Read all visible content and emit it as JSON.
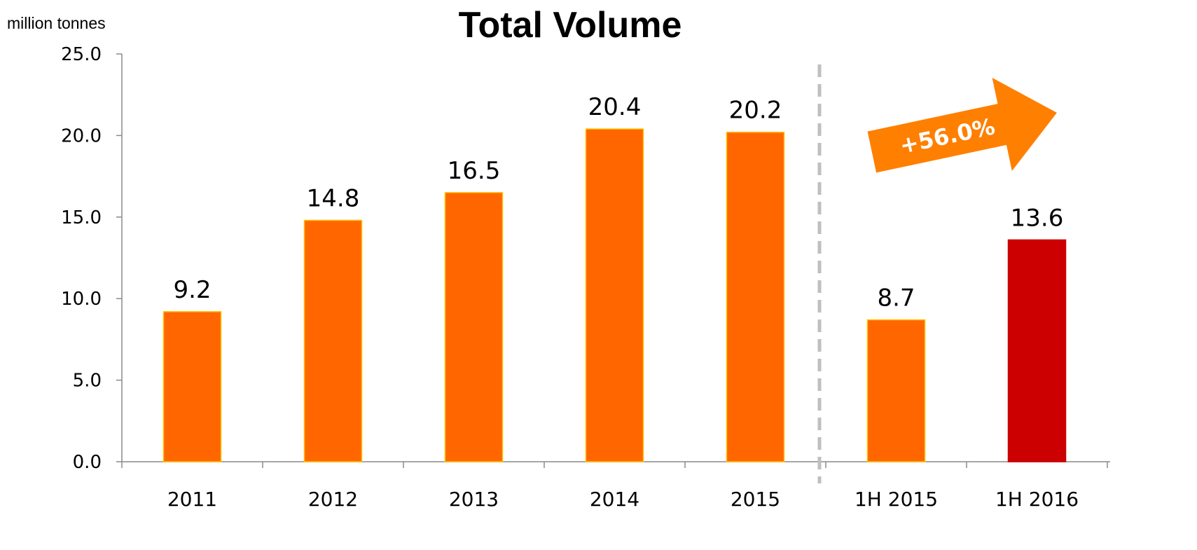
{
  "chart_data": {
    "type": "bar",
    "title": "Total Volume",
    "ylabel": "million tonnes",
    "xlabel": "",
    "ylim": [
      0,
      25
    ],
    "yticks": [
      "0.0",
      "5.0",
      "10.0",
      "15.0",
      "20.0",
      "25.0"
    ],
    "grid": false,
    "categories": [
      "2011",
      "2012",
      "2013",
      "2014",
      "2015",
      "1H 2015",
      "1H 2016"
    ],
    "values": [
      9.2,
      14.8,
      16.5,
      20.4,
      20.2,
      8.7,
      13.6
    ],
    "value_labels": [
      "9.2",
      "14.8",
      "16.5",
      "20.4",
      "20.2",
      "8.7",
      "13.6"
    ],
    "bar_colors": [
      "#FF6600",
      "#FF6600",
      "#FF6600",
      "#FF6600",
      "#FF6600",
      "#FF6600",
      "#CC0000"
    ],
    "separator": "dashed vertical line between 2015 and 1H 2015",
    "annotation": {
      "text": "+56.0%",
      "color": "#FF7F00",
      "icon": "arrow-right-up-icon"
    }
  }
}
